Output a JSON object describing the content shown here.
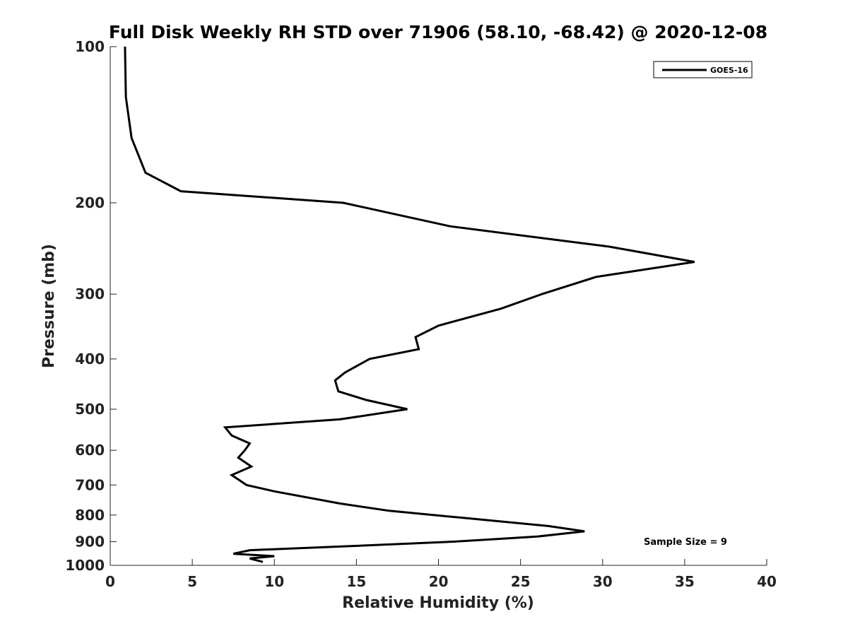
{
  "chart_data": {
    "type": "line",
    "title": "Full Disk Weekly RH STD over 71906 (58.10, -68.42) @ 2020-12-08",
    "xlabel": "Relative Humidity (%)",
    "ylabel": "Pressure (mb)",
    "xlim": [
      0,
      40
    ],
    "ylim": [
      100,
      1000
    ],
    "y_scale": "log",
    "y_inverted": true,
    "grid": false,
    "legend_position": "top-right",
    "x_ticks": [
      "0",
      "5",
      "10",
      "15",
      "20",
      "25",
      "30",
      "35",
      "40"
    ],
    "y_ticks": [
      "100",
      "200",
      "300",
      "400",
      "500",
      "600",
      "700",
      "800",
      "900",
      "1000"
    ],
    "series": [
      {
        "name": "GOES-16",
        "color": "#000000",
        "x": [
          0.9,
          0.95,
          1.3,
          2.15,
          4.3,
          14.2,
          20.7,
          30.4,
          35.6,
          29.6,
          26.3,
          23.8,
          20.0,
          18.6,
          18.8,
          15.8,
          14.3,
          13.7,
          13.9,
          15.6,
          18.1,
          14.0,
          7.0,
          7.4,
          8.5,
          8.2,
          7.8,
          8.6,
          7.4,
          8.3,
          10.0,
          14.0,
          17.0,
          21.5,
          26.7,
          28.9,
          26.0,
          21.0,
          14.0,
          8.5,
          7.5,
          10.0,
          8.5,
          9.3
        ],
        "y": [
          100,
          125,
          150,
          175,
          190,
          200,
          222,
          243,
          260,
          278,
          300,
          320,
          345,
          363,
          383,
          400,
          425,
          440,
          462,
          480,
          500,
          523,
          542,
          562,
          582,
          600,
          620,
          645,
          670,
          700,
          720,
          760,
          785,
          810,
          840,
          860,
          880,
          900,
          920,
          935,
          950,
          960,
          970,
          985
        ]
      }
    ],
    "annotations": [
      "Sample Size = 9"
    ]
  }
}
